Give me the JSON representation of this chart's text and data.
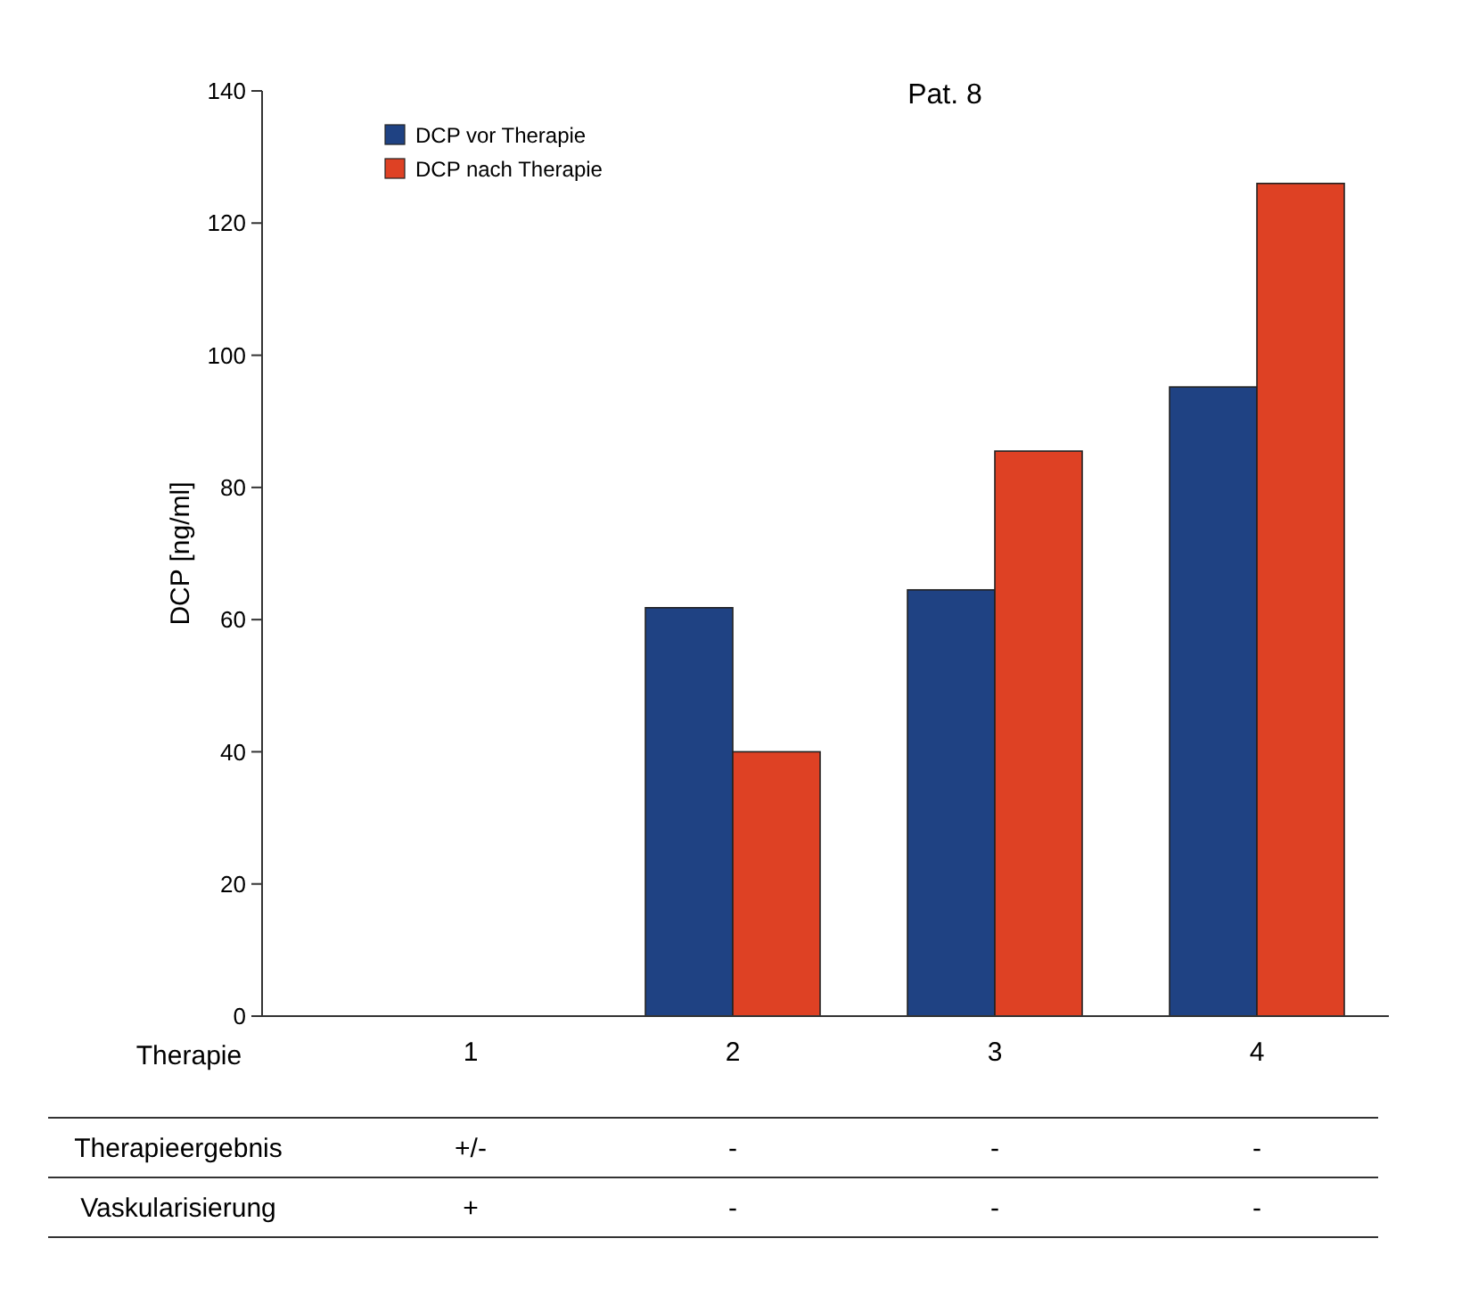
{
  "chart_data": {
    "type": "bar",
    "title": "Pat. 8",
    "xlabel": "Therapie",
    "ylabel": "DCP [ng/ml]",
    "categories": [
      "1",
      "2",
      "3",
      "4"
    ],
    "series": [
      {
        "name": "DCP vor Therapie",
        "color": "#1f4283",
        "values": [
          null,
          61.8,
          64.5,
          95.2
        ]
      },
      {
        "name": "DCP nach Therapie",
        "color": "#de4124",
        "values": [
          null,
          40,
          85.5,
          126
        ]
      }
    ],
    "ylim": [
      0,
      140
    ],
    "yticks": [
      0,
      20,
      40,
      60,
      80,
      100,
      120,
      140
    ],
    "grid": false,
    "legend": "top left",
    "annotations": [
      "Therapieergebnis",
      "+/-",
      "-",
      "-",
      "-",
      "Vaskularisierung",
      "+",
      "-",
      "-",
      "-"
    ]
  }
}
